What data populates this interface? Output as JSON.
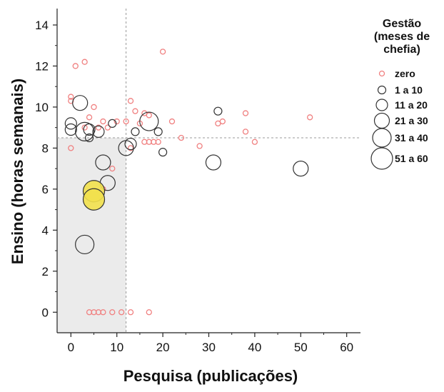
{
  "chart_data": {
    "type": "scatter",
    "title": "",
    "xlabel": "Pesquisa (publicações)",
    "ylabel": "Ensino (horas semanais)",
    "xlim": [
      -3,
      63
    ],
    "ylim": [
      -1,
      14.8
    ],
    "x_ticks": [
      0,
      10,
      20,
      30,
      40,
      50,
      60
    ],
    "y_ticks": [
      0,
      2,
      4,
      6,
      8,
      10,
      12,
      14
    ],
    "reference_lines": {
      "x": 12,
      "y": 8.5
    },
    "shaded_quadrant": {
      "x": [
        -3,
        12
      ],
      "y": [
        -1,
        8.5
      ],
      "color": "#ebebeb"
    },
    "grid": false,
    "legend": {
      "title_lines": [
        "Gestão",
        "(meses de",
        "chefia)"
      ],
      "placement": "right",
      "entries": [
        {
          "label": "zero",
          "category": 0
        },
        {
          "label": "1 a 10",
          "category": 1
        },
        {
          "label": "11 a 20",
          "category": 2
        },
        {
          "label": "21 a 30",
          "category": 3
        },
        {
          "label": "31 a 40",
          "category": 4
        },
        {
          "label": "51 a 60",
          "category": 5
        }
      ]
    },
    "colors": {
      "zero": "#f08080",
      "other": "#333333",
      "highlight_fill": "#f2e14c",
      "reference_line": "#9a9a9a"
    },
    "series": [
      {
        "name": "zero",
        "category": 0,
        "points": [
          [
            0,
            10.5
          ],
          [
            0,
            10.3
          ],
          [
            0,
            8.0
          ],
          [
            1,
            12.0
          ],
          [
            3,
            12.2
          ],
          [
            3,
            9.0
          ],
          [
            4,
            9.5
          ],
          [
            5,
            10.0
          ],
          [
            6,
            9.0
          ],
          [
            7,
            9.3
          ],
          [
            8,
            9.0
          ],
          [
            10,
            9.3
          ],
          [
            12,
            9.3
          ],
          [
            13,
            10.3
          ],
          [
            14,
            9.8
          ],
          [
            15,
            9.2
          ],
          [
            16,
            9.7
          ],
          [
            17,
            9.6
          ],
          [
            18,
            8.3
          ],
          [
            19,
            8.3
          ],
          [
            22,
            9.3
          ],
          [
            24,
            8.5
          ],
          [
            28,
            8.1
          ],
          [
            32,
            9.2
          ],
          [
            33,
            9.3
          ],
          [
            38,
            9.7
          ],
          [
            38,
            8.8
          ],
          [
            40,
            8.3
          ],
          [
            52,
            9.5
          ],
          [
            20,
            12.7
          ],
          [
            9,
            7.0
          ],
          [
            7,
            6.0
          ],
          [
            13,
            8.0
          ],
          [
            16,
            8.3
          ],
          [
            17,
            8.3
          ],
          [
            4,
            0
          ],
          [
            5,
            0
          ],
          [
            6,
            0
          ],
          [
            7,
            0
          ],
          [
            9,
            0
          ],
          [
            11,
            0
          ],
          [
            13,
            0
          ],
          [
            17,
            0
          ]
        ]
      },
      {
        "name": "1 a 10",
        "category": 1,
        "points": [
          [
            4,
            8.5
          ],
          [
            9,
            9.2
          ],
          [
            20,
            7.8
          ],
          [
            32,
            9.8
          ],
          [
            14,
            8.8
          ],
          [
            19,
            8.8
          ]
        ]
      },
      {
        "name": "11 a 20",
        "category": 2,
        "points": [
          [
            0,
            9.2
          ],
          [
            0,
            8.9
          ],
          [
            6,
            8.8
          ],
          [
            4,
            8.9
          ],
          [
            13,
            8.2
          ]
        ]
      },
      {
        "name": "21 a 30",
        "category": 3,
        "points": [
          [
            2,
            10.2
          ],
          [
            7,
            7.3
          ],
          [
            8,
            6.3
          ],
          [
            12,
            8.0
          ],
          [
            31,
            7.3
          ],
          [
            50,
            7.0
          ]
        ]
      },
      {
        "name": "31 a 40",
        "category": 4,
        "points": [
          [
            3,
            8.8
          ],
          [
            17,
            9.3
          ],
          [
            3,
            3.3
          ]
        ]
      },
      {
        "name": "51 a 60",
        "category": 5,
        "highlighted": true,
        "points": [
          [
            5,
            5.9
          ],
          [
            5,
            5.5
          ]
        ]
      }
    ]
  }
}
